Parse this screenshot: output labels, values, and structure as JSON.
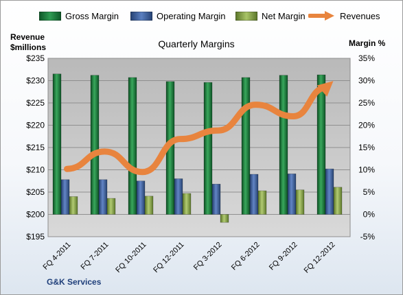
{
  "chart_data": {
    "type": "bar",
    "title": "Quarterly Margins",
    "y_left_label": [
      "Revenue",
      "$millions"
    ],
    "y_right_label": "Margin %",
    "categories": [
      "FQ 4-2011",
      "FQ 7-2011",
      "FQ 10-2011",
      "FQ 12-2011",
      "FQ 3-2012",
      "FQ 6-2012",
      "FQ 9-2012",
      "FQ 12-2012"
    ],
    "y_left_ticks": [
      "$235",
      "$230",
      "$225",
      "$220",
      "$215",
      "$210",
      "$205",
      "$200",
      "$195"
    ],
    "y_right_ticks": [
      "35%",
      "30%",
      "25%",
      "20%",
      "15%",
      "10%",
      "5%",
      "0%",
      "-5%"
    ],
    "ylim_left": [
      195,
      235
    ],
    "ylim_right": [
      -5,
      35
    ],
    "grid": true,
    "legend_position": "top",
    "series": [
      {
        "name": "Gross Margin",
        "axis": "right",
        "type": "bar",
        "color": "#1e7a3c",
        "values": [
          31.5,
          31.2,
          30.7,
          29.8,
          29.6,
          30.7,
          31.2,
          31.3
        ]
      },
      {
        "name": "Operating Margin",
        "axis": "right",
        "type": "bar",
        "color": "#3d5f9e",
        "values": [
          7.8,
          7.8,
          7.5,
          8.0,
          6.8,
          9.0,
          9.1,
          10.2
        ]
      },
      {
        "name": "Net Margin",
        "axis": "right",
        "type": "bar",
        "color": "#8aa84a",
        "values": [
          4.0,
          3.6,
          4.1,
          4.7,
          -1.8,
          5.3,
          5.5,
          6.1
        ]
      },
      {
        "name": "Revenues",
        "axis": "left",
        "type": "arrow-line",
        "color": "#e8843e",
        "values": [
          210.2,
          214.1,
          209.5,
          216.9,
          218.8,
          224.6,
          222.0,
          229.5
        ]
      }
    ]
  },
  "footer": {
    "company": "G&K Services"
  }
}
